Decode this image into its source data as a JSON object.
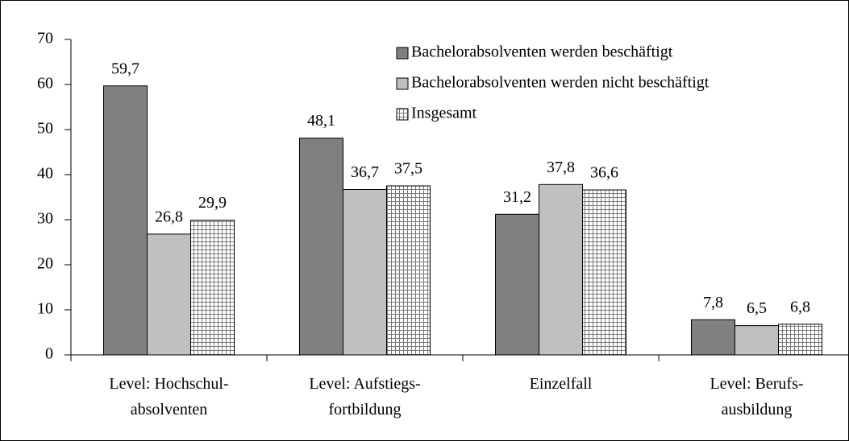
{
  "chart_data": {
    "type": "bar",
    "categories": [
      "Level: Hochschul-\nabsolventen",
      "Level: Aufstiegs-\nfortbildung",
      "Einzelfall",
      "Level: Berufs-\nausbildung"
    ],
    "series": [
      {
        "name": "Bachelorabsolventen werden beschäftigt",
        "color": "#808080",
        "values": [
          59.7,
          48.1,
          31.2,
          7.8
        ],
        "value_labels": [
          "59,7",
          "48,1",
          "31,2",
          "7,8"
        ]
      },
      {
        "name": "Bachelorabsolventen werden nicht beschäftigt",
        "color": "#c0c0c0",
        "values": [
          26.8,
          36.7,
          37.8,
          6.5
        ],
        "value_labels": [
          "26,8",
          "36,7",
          "37,8",
          "6,5"
        ]
      },
      {
        "name": "Insgesamt",
        "color": "#ffffff",
        "pattern": "grid",
        "values": [
          29.9,
          37.5,
          36.6,
          6.8
        ],
        "value_labels": [
          "29,9",
          "37,5",
          "36,6",
          "6,8"
        ]
      }
    ],
    "ylim": [
      0,
      70
    ],
    "yticks": [
      0,
      10,
      20,
      30,
      40,
      50,
      60,
      70
    ],
    "grid": false,
    "legend": "top-right"
  }
}
